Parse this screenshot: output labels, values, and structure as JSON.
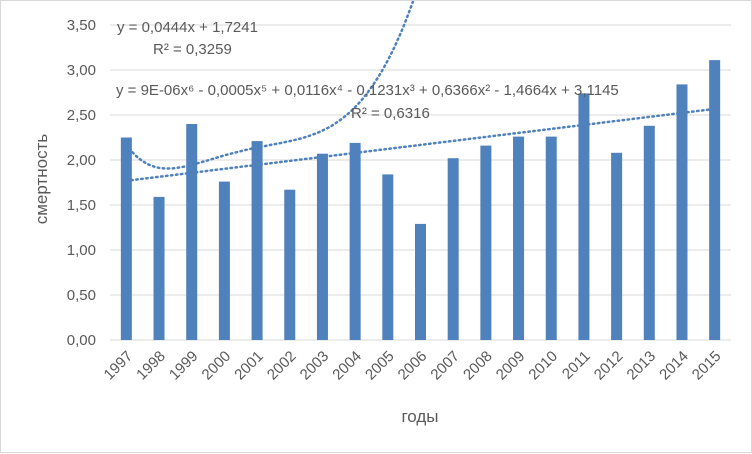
{
  "chart_data": {
    "type": "bar",
    "title": "",
    "xlabel": "годы",
    "ylabel": "смертность",
    "ylim": [
      0,
      3.5
    ],
    "ytick_step": 0.5,
    "ytick_labels": [
      "0,00",
      "0,50",
      "1,00",
      "1,50",
      "2,00",
      "2,50",
      "3,00",
      "3,50"
    ],
    "categories": [
      "1997",
      "1998",
      "1999",
      "2000",
      "2001",
      "2002",
      "2003",
      "2004",
      "2005",
      "2006",
      "2007",
      "2008",
      "2009",
      "2010",
      "2011",
      "2012",
      "2013",
      "2014",
      "2015"
    ],
    "series": [
      {
        "name": "смертность",
        "color": "#4f81bd",
        "values": [
          2.25,
          1.59,
          2.4,
          1.76,
          2.21,
          1.67,
          2.07,
          2.19,
          1.84,
          1.29,
          2.02,
          2.16,
          2.26,
          2.26,
          2.74,
          2.08,
          2.38,
          2.84,
          3.11
        ]
      }
    ],
    "trendlines": [
      {
        "kind": "linear",
        "color": "#4f81bd",
        "coefficients": [
          1.7241,
          0.0444
        ],
        "equation": "y = 0,0444x + 1,7241",
        "r2": "R² = 0,3259"
      },
      {
        "kind": "polynomial-6",
        "color": "#4f81bd",
        "coefficients": [
          3.1145,
          -1.4664,
          0.6366,
          -0.1231,
          0.0116,
          -0.0005,
          9e-06
        ],
        "equation": "y = 9E-06x⁶ - 0,0005x⁵ + 0,0116x⁴ - 0,1231x³ + 0,6366x² - 1,4664x + 3,1145",
        "r2": "R² = 0,6316"
      }
    ]
  }
}
